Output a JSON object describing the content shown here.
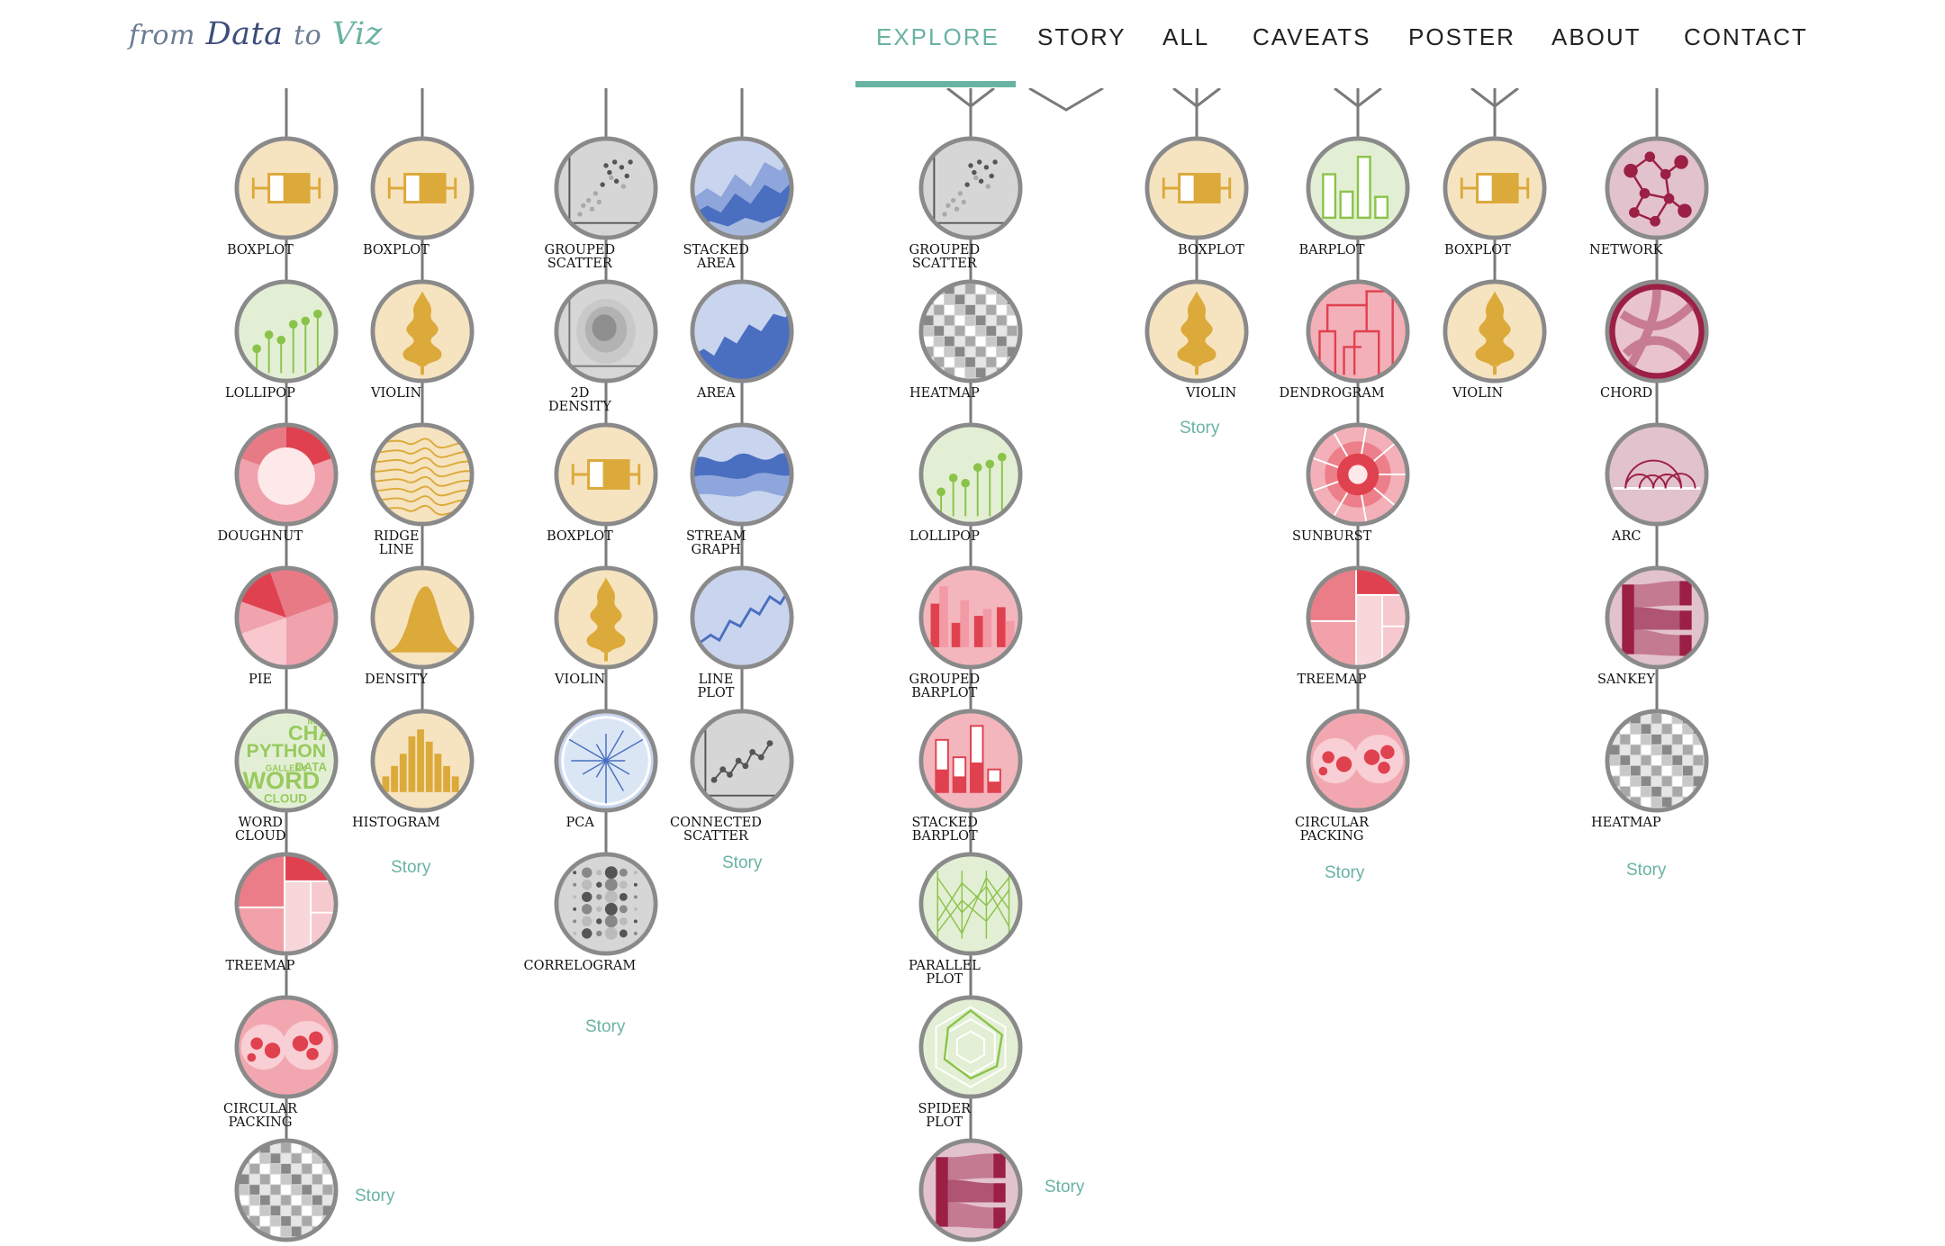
{
  "logo": {
    "w1": "from",
    "w2": "Data",
    "w3": "to",
    "w4": "Viz"
  },
  "nav": [
    {
      "label": "EXPLORE",
      "active": true
    },
    {
      "label": "STORY"
    },
    {
      "label": "ALL"
    },
    {
      "label": "CAVEATS"
    },
    {
      "label": "POSTER"
    },
    {
      "label": "ABOUT"
    },
    {
      "label": "CONTACT"
    }
  ],
  "colors": {
    "accent": "#69b3a2",
    "line": "#7a7a7a",
    "nodeBorder": "#8a8a8a",
    "yellow": "#f6e3c0",
    "yellowInk": "#dcaa3a",
    "green": "#e3efd4",
    "greenInk": "#8bc34a",
    "red": "#f3b6bd",
    "redInk": "#e0414f",
    "blue": "#c9d5ee",
    "blueInk": "#4a6fc0",
    "grey": "#d6d6d6",
    "greyInk": "#555555",
    "mauve": "#e2c2cc",
    "mauveInk": "#9c1f45"
  },
  "columns": [
    {
      "nodes": [
        {
          "label": [
            "BOXPLOT"
          ],
          "icon": "boxplot-icon",
          "theme": "yellow"
        },
        {
          "label": [
            "LOLLIPOP"
          ],
          "icon": "lollipop-icon",
          "theme": "green"
        },
        {
          "label": [
            "DOUGHNUT"
          ],
          "icon": "doughnut-icon",
          "theme": "red"
        },
        {
          "label": [
            "PIE"
          ],
          "icon": "pie-icon",
          "theme": "red"
        },
        {
          "label": [
            "WORD",
            "CLOUD"
          ],
          "icon": "wordcloud-icon",
          "theme": "green"
        },
        {
          "label": [
            "TREEMAP"
          ],
          "icon": "treemap-icon",
          "theme": "red"
        },
        {
          "label": [
            "CIRCULAR",
            "PACKING"
          ],
          "icon": "circular-packing-icon",
          "theme": "red"
        },
        {
          "label": [],
          "icon": "heatmap-icon",
          "theme": "grey"
        }
      ],
      "story": "Story"
    },
    {
      "nodes": [
        {
          "label": [
            "BOXPLOT"
          ],
          "icon": "boxplot-icon",
          "theme": "yellow"
        },
        {
          "label": [
            "VIOLIN"
          ],
          "icon": "violin-icon",
          "theme": "yellow"
        },
        {
          "label": [
            "RIDGE",
            "LINE"
          ],
          "icon": "ridgeline-icon",
          "theme": "yellow"
        },
        {
          "label": [
            "DENSITY"
          ],
          "icon": "density-icon",
          "theme": "yellow"
        },
        {
          "label": [
            "HISTOGRAM"
          ],
          "icon": "histogram-icon",
          "theme": "yellow"
        }
      ],
      "story": "Story"
    },
    {
      "nodes": [
        {
          "label": [
            "GROUPED",
            "SCATTER"
          ],
          "icon": "scatter-icon",
          "theme": "grey"
        },
        {
          "label": [
            "2D",
            "DENSITY"
          ],
          "icon": "density2d-icon",
          "theme": "grey"
        },
        {
          "label": [
            "BOXPLOT"
          ],
          "icon": "boxplot-icon",
          "theme": "yellow"
        },
        {
          "label": [
            "VIOLIN"
          ],
          "icon": "violin-icon",
          "theme": "yellow"
        },
        {
          "label": [
            "PCA"
          ],
          "icon": "pca-icon",
          "theme": "blue"
        },
        {
          "label": [
            "CORRELOGRAM"
          ],
          "icon": "correlogram-icon",
          "theme": "grey"
        }
      ],
      "story": "Story"
    },
    {
      "nodes": [
        {
          "label": [
            "STACKED",
            "AREA"
          ],
          "icon": "stacked-area-icon",
          "theme": "blue"
        },
        {
          "label": [
            "AREA"
          ],
          "icon": "area-icon",
          "theme": "blue"
        },
        {
          "label": [
            "STREAM",
            "GRAPH"
          ],
          "icon": "streamgraph-icon",
          "theme": "blue"
        },
        {
          "label": [
            "LINE",
            "PLOT"
          ],
          "icon": "lineplot-icon",
          "theme": "blue"
        },
        {
          "label": [
            "CONNECTED",
            "SCATTER"
          ],
          "icon": "connected-scatter-icon",
          "theme": "grey"
        }
      ],
      "story": "Story"
    },
    {
      "nodes": [
        {
          "label": [
            "GROUPED",
            "SCATTER"
          ],
          "icon": "scatter-icon",
          "theme": "grey"
        },
        {
          "label": [
            "HEATMAP"
          ],
          "icon": "heatmap-icon",
          "theme": "grey"
        },
        {
          "label": [
            "LOLLIPOP"
          ],
          "icon": "lollipop-icon",
          "theme": "green"
        },
        {
          "label": [
            "GROUPED",
            "BARPLOT"
          ],
          "icon": "grouped-barplot-icon",
          "theme": "red"
        },
        {
          "label": [
            "STACKED",
            "BARPLOT"
          ],
          "icon": "stacked-barplot-icon",
          "theme": "red"
        },
        {
          "label": [
            "PARALLEL",
            "PLOT"
          ],
          "icon": "parallel-plot-icon",
          "theme": "green"
        },
        {
          "label": [
            "SPIDER",
            "PLOT"
          ],
          "icon": "spider-plot-icon",
          "theme": "green"
        },
        {
          "label": [],
          "icon": "sankey-icon",
          "theme": "mauve"
        }
      ],
      "story": "Story"
    },
    {
      "nodes": [
        {
          "label": [
            "BOXPLOT"
          ],
          "icon": "boxplot-icon",
          "theme": "yellow"
        },
        {
          "label": [
            "VIOLIN"
          ],
          "icon": "violin-icon",
          "theme": "yellow"
        }
      ],
      "story": "Story"
    },
    {
      "nodes": [
        {
          "label": [
            "BARPLOT"
          ],
          "icon": "barplot-icon",
          "theme": "green"
        },
        {
          "label": [
            "DENDROGRAM"
          ],
          "icon": "dendrogram-icon",
          "theme": "red"
        },
        {
          "label": [
            "SUNBURST"
          ],
          "icon": "sunburst-icon",
          "theme": "red"
        },
        {
          "label": [
            "TREEMAP"
          ],
          "icon": "treemap-icon",
          "theme": "red"
        },
        {
          "label": [
            "CIRCULAR",
            "PACKING"
          ],
          "icon": "circular-packing-icon",
          "theme": "red"
        }
      ],
      "story": "Story"
    },
    {
      "nodes": [
        {
          "label": [
            "BOXPLOT"
          ],
          "icon": "boxplot-icon",
          "theme": "yellow"
        },
        {
          "label": [
            "VIOLIN"
          ],
          "icon": "violin-icon",
          "theme": "yellow"
        }
      ],
      "story": ""
    },
    {
      "nodes": [
        {
          "label": [
            "NETWORK"
          ],
          "icon": "network-icon",
          "theme": "mauve"
        },
        {
          "label": [
            "CHORD"
          ],
          "icon": "chord-icon",
          "theme": "mauve"
        },
        {
          "label": [
            "ARC"
          ],
          "icon": "arc-icon",
          "theme": "mauve"
        },
        {
          "label": [
            "SANKEY"
          ],
          "icon": "sankey-icon",
          "theme": "mauve"
        },
        {
          "label": [
            "HEATMAP"
          ],
          "icon": "heatmap-icon",
          "theme": "grey"
        }
      ],
      "story": "Story"
    }
  ]
}
